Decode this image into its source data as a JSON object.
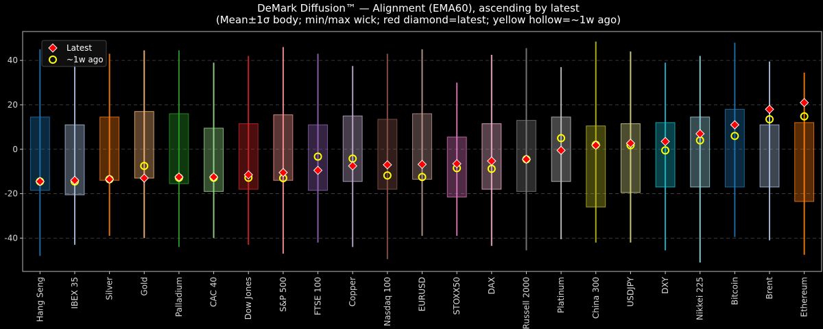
{
  "chart_data": {
    "type": "box",
    "title": "DeMark Diffusion™ — Alignment (EMA60), ascending by latest",
    "subtitle": "(Mean±1σ body; min/max wick; red diamond=latest; yellow hollow=~1w ago)",
    "xlabel": "",
    "ylabel": "",
    "ylim": [
      -55,
      53
    ],
    "yticks": [
      -40,
      -20,
      0,
      20,
      40
    ],
    "grid": true,
    "legend": {
      "placement": "top-left",
      "entries": [
        "Latest",
        "~1w ago"
      ]
    },
    "marker_colors": {
      "latest": "#ff0000",
      "latest_edge": "#ffffff",
      "week_ago": "#ffff00"
    },
    "categories": [
      "Hang Seng",
      "IBEX 35",
      "Silver",
      "Gold",
      "Palladium",
      "CAC 40",
      "Dow Jones",
      "S&P 500",
      "FTSE 100",
      "Copper",
      "Nasdaq 100",
      "EURUSD",
      "STOXX50",
      "DAX",
      "Russell 2000",
      "Platinum",
      "China 300",
      "USDJPY",
      "DXY",
      "Nikkei 225",
      "Bitcoin",
      "Brent",
      "Ethereum"
    ],
    "colors": [
      "#1f77b4",
      "#aec7e8",
      "#ff7f0e",
      "#ffbb78",
      "#2ca02c",
      "#98df8a",
      "#d62728",
      "#ff9896",
      "#9467bd",
      "#c5b0d5",
      "#8c564b",
      "#c49c94",
      "#e377c2",
      "#f7b6d2",
      "#7f7f7f",
      "#c7c7c7",
      "#bcbd22",
      "#dbdb8d",
      "#17becf",
      "#9edae5",
      "#1f77b4",
      "#aec7e8",
      "#ff7f0e"
    ],
    "body_low": [
      -18.5,
      -20.5,
      -14,
      -13,
      -15.5,
      -19,
      -18,
      -14,
      -18.5,
      -14.5,
      -18,
      -13.5,
      -21.5,
      -18,
      -19,
      -14.5,
      -26,
      -19.5,
      -17,
      -17,
      -17,
      -17,
      -23.5
    ],
    "body_high": [
      14.5,
      11,
      14.5,
      17,
      16,
      9.5,
      11.5,
      15.5,
      11,
      15,
      13.5,
      16,
      5.5,
      11.5,
      13,
      14.5,
      10.5,
      11.5,
      12,
      14.5,
      18,
      11,
      12
    ],
    "min": [
      -48,
      -43,
      -39,
      -40,
      -44,
      -40,
      -43,
      -47,
      -42,
      -44,
      -49.5,
      -39,
      -39,
      -43.5,
      -45.5,
      -40.5,
      -42,
      -42,
      -45.5,
      -51,
      -39.5,
      -41,
      -47.5
    ],
    "max": [
      45,
      43,
      43,
      44.5,
      44.5,
      39,
      42,
      46,
      43,
      37.5,
      43,
      45,
      30,
      42.5,
      45.5,
      37,
      48.5,
      44,
      39,
      42,
      48,
      39.5,
      34.5
    ],
    "latest": [
      -14.5,
      -14,
      -13.5,
      -13,
      -12.5,
      -12.5,
      -11.5,
      -10.5,
      -9.5,
      -7.5,
      -7,
      -6.8,
      -6.5,
      -5.3,
      -4.5,
      -0.5,
      1.8,
      2.7,
      3.5,
      7,
      11,
      18,
      21
    ],
    "week_ago": [
      -14.5,
      -14.5,
      -13.5,
      -7.5,
      -12.8,
      -12.8,
      -12.8,
      -13,
      -3.3,
      -4.2,
      -11.8,
      -12.5,
      -8.5,
      -8.8,
      -4.5,
      5,
      2,
      1.8,
      -0.5,
      4,
      6,
      13.5,
      14.8
    ]
  }
}
